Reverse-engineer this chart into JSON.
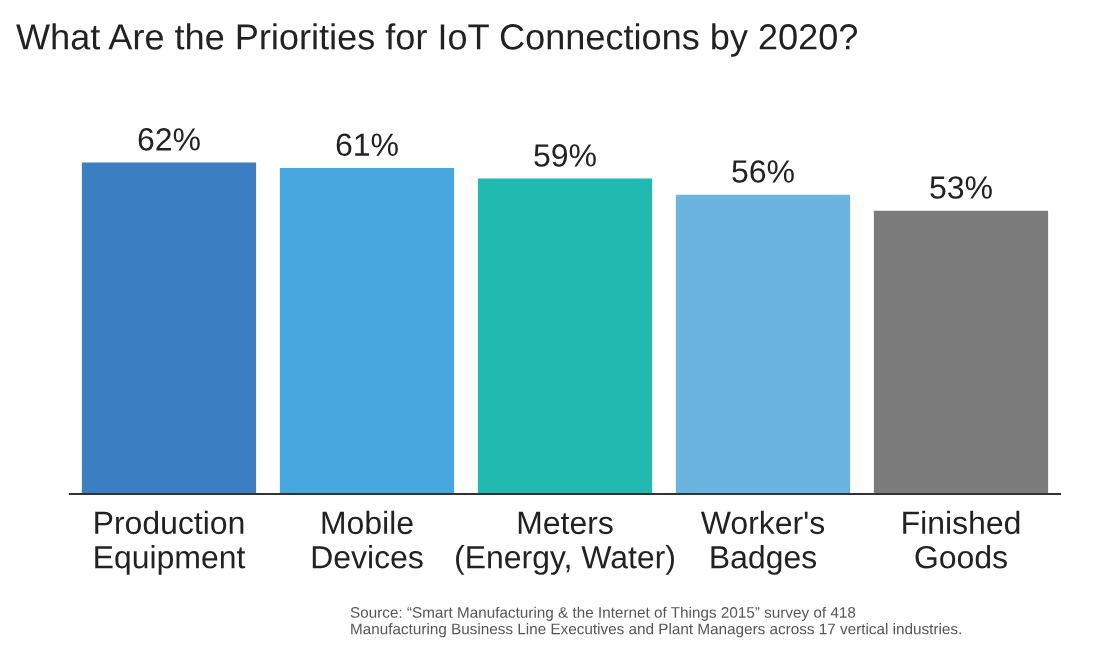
{
  "chart_data": {
    "type": "bar",
    "title": "What Are the Priorities for IoT Connections by 2020?",
    "categories": [
      "Production\nEquipment",
      "Mobile\nDevices",
      "Meters\n(Energy, Water)",
      "Worker's\nBadges",
      "Finished\nGoods"
    ],
    "values": [
      62,
      61,
      59,
      56,
      53
    ],
    "colors": [
      "#3b7fc2",
      "#46a7de",
      "#22b9b1",
      "#6cb4e0",
      "#7b7b7b"
    ],
    "value_labels": [
      "62%",
      "61%",
      "59%",
      "56%",
      "53%"
    ],
    "tick_labels": "x",
    "grid": false,
    "annotations": [
      "Source: “Smart Manufacturing & the Internet of Things 2015” survey of 418\nManufacturing Business Line Executives and Plant Managers across 17 vertical industries."
    ]
  }
}
